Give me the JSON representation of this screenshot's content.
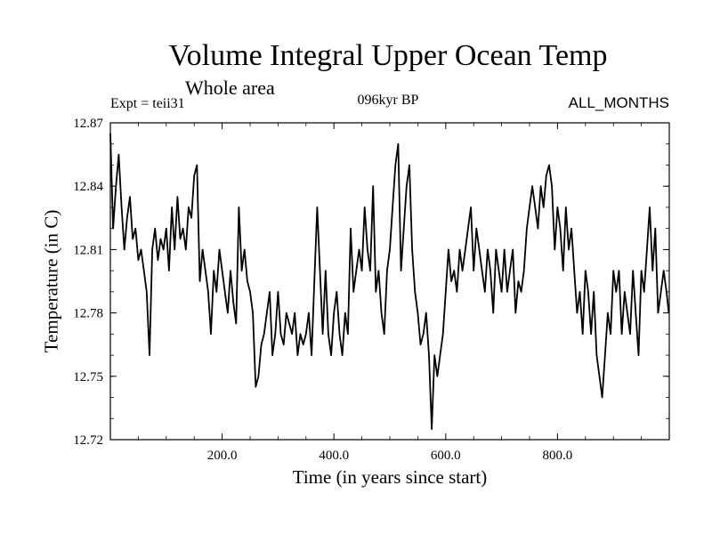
{
  "chart_data": {
    "type": "line",
    "title": "Volume Integral Upper Ocean Temp",
    "subtitle": "Whole area",
    "annotations": {
      "expt": "Expt = teii31",
      "period": "096kyr BP",
      "months": "ALL_MONTHS"
    },
    "xlabel": "Time (in years since start)",
    "ylabel": "Temperature (in C)",
    "xlim": [
      0,
      1000
    ],
    "ylim": [
      12.72,
      12.87
    ],
    "xticks": [
      200,
      400,
      600,
      800
    ],
    "xtick_labels": [
      "200.0",
      "400.0",
      "600.0",
      "800.0"
    ],
    "yticks": [
      12.72,
      12.75,
      12.78,
      12.81,
      12.84,
      12.87
    ],
    "ytick_labels": [
      "12.72",
      "12.75",
      "12.78",
      "12.81",
      "12.84",
      "12.87"
    ],
    "grid": false,
    "series": [
      {
        "color": "#000000",
        "x": [
          0,
          5,
          10,
          15,
          20,
          25,
          30,
          35,
          40,
          45,
          50,
          55,
          60,
          65,
          70,
          75,
          80,
          85,
          90,
          95,
          100,
          105,
          110,
          115,
          120,
          125,
          130,
          135,
          140,
          145,
          150,
          155,
          160,
          165,
          170,
          175,
          180,
          185,
          190,
          195,
          200,
          205,
          210,
          215,
          220,
          225,
          230,
          235,
          240,
          245,
          250,
          255,
          260,
          265,
          270,
          275,
          280,
          285,
          290,
          295,
          300,
          305,
          310,
          315,
          320,
          325,
          330,
          335,
          340,
          345,
          350,
          355,
          360,
          365,
          370,
          375,
          380,
          385,
          390,
          395,
          400,
          405,
          410,
          415,
          420,
          425,
          430,
          435,
          440,
          445,
          450,
          455,
          460,
          465,
          470,
          475,
          480,
          485,
          490,
          495,
          500,
          505,
          510,
          515,
          520,
          525,
          530,
          535,
          540,
          545,
          550,
          555,
          560,
          565,
          570,
          575,
          580,
          585,
          590,
          595,
          600,
          605,
          610,
          615,
          620,
          625,
          630,
          635,
          640,
          645,
          650,
          655,
          660,
          665,
          670,
          675,
          680,
          685,
          690,
          695,
          700,
          705,
          710,
          715,
          720,
          725,
          730,
          735,
          740,
          745,
          750,
          755,
          760,
          765,
          770,
          775,
          780,
          785,
          790,
          795,
          800,
          805,
          810,
          815,
          820,
          825,
          830,
          835,
          840,
          845,
          850,
          855,
          860,
          865,
          870,
          875,
          880,
          885,
          890,
          895,
          900,
          905,
          910,
          915,
          920,
          925,
          930,
          935,
          940,
          945,
          950,
          955,
          960,
          965,
          970,
          975,
          980,
          985,
          990,
          995,
          999
        ],
        "values": [
          12.865,
          12.82,
          12.84,
          12.855,
          12.83,
          12.81,
          12.825,
          12.835,
          12.815,
          12.82,
          12.805,
          12.81,
          12.8,
          12.79,
          12.76,
          12.81,
          12.82,
          12.805,
          12.815,
          12.81,
          12.82,
          12.8,
          12.83,
          12.81,
          12.835,
          12.815,
          12.82,
          12.81,
          12.83,
          12.825,
          12.845,
          12.85,
          12.795,
          12.81,
          12.8,
          12.79,
          12.77,
          12.8,
          12.79,
          12.81,
          12.8,
          12.79,
          12.78,
          12.8,
          12.785,
          12.775,
          12.83,
          12.8,
          12.81,
          12.795,
          12.79,
          12.78,
          12.745,
          12.75,
          12.765,
          12.77,
          12.78,
          12.79,
          12.76,
          12.77,
          12.79,
          12.77,
          12.765,
          12.78,
          12.775,
          12.77,
          12.78,
          12.76,
          12.77,
          12.765,
          12.77,
          12.78,
          12.76,
          12.795,
          12.83,
          12.8,
          12.77,
          12.8,
          12.77,
          12.76,
          12.78,
          12.79,
          12.77,
          12.76,
          12.78,
          12.77,
          12.82,
          12.79,
          12.8,
          12.81,
          12.8,
          12.83,
          12.81,
          12.8,
          12.84,
          12.79,
          12.8,
          12.78,
          12.77,
          12.8,
          12.81,
          12.83,
          12.85,
          12.86,
          12.8,
          12.82,
          12.84,
          12.85,
          12.81,
          12.79,
          12.78,
          12.765,
          12.77,
          12.78,
          12.76,
          12.725,
          12.76,
          12.75,
          12.76,
          12.77,
          12.79,
          12.81,
          12.795,
          12.8,
          12.79,
          12.81,
          12.8,
          12.81,
          12.82,
          12.83,
          12.8,
          12.82,
          12.81,
          12.8,
          12.79,
          12.81,
          12.8,
          12.78,
          12.81,
          12.8,
          12.79,
          12.81,
          12.79,
          12.8,
          12.81,
          12.78,
          12.795,
          12.79,
          12.8,
          12.82,
          12.83,
          12.84,
          12.83,
          12.82,
          12.84,
          12.83,
          12.845,
          12.85,
          12.84,
          12.81,
          12.83,
          12.82,
          12.8,
          12.83,
          12.81,
          12.82,
          12.8,
          12.78,
          12.79,
          12.77,
          12.8,
          12.79,
          12.77,
          12.79,
          12.76,
          12.75,
          12.74,
          12.76,
          12.78,
          12.77,
          12.8,
          12.79,
          12.8,
          12.77,
          12.79,
          12.78,
          12.77,
          12.8,
          12.78,
          12.76,
          12.8,
          12.79,
          12.81,
          12.83,
          12.8,
          12.82,
          12.78,
          12.79,
          12.8,
          12.79,
          12.78
        ]
      }
    ]
  }
}
